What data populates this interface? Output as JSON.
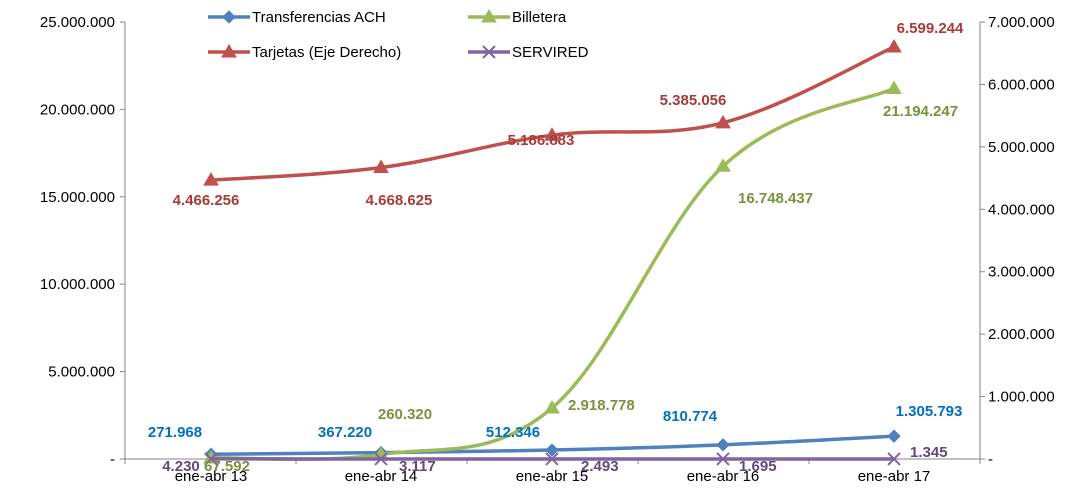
{
  "chart_data": {
    "type": "line",
    "categories": [
      "ene-abr 13",
      "ene-abr 14",
      "ene-abr 15",
      "ene-abr 16",
      "ene-abr 17"
    ],
    "y_left": {
      "ylim": [
        0,
        25000000
      ],
      "ticks": [
        0,
        5000000,
        10000000,
        15000000,
        20000000,
        25000000
      ],
      "tick_labels": [
        "-",
        "5.000.000",
        "10.000.000",
        "15.000.000",
        "20.000.000",
        "25.000.000"
      ]
    },
    "y_right": {
      "ylim": [
        0,
        7000000
      ],
      "ticks": [
        0,
        1000000,
        2000000,
        3000000,
        4000000,
        5000000,
        6000000,
        7000000
      ],
      "tick_labels": [
        "-",
        "1.000.000",
        "2.000.000",
        "3.000.000",
        "4.000.000",
        "5.000.000",
        "6.000.000",
        "7.000.000"
      ]
    },
    "series": [
      {
        "name": "Transferencias ACH",
        "axis": "left",
        "color": "#4f81bd",
        "label_color": "#0070c0",
        "marker": "diamond",
        "values": [
          271968,
          367220,
          512346,
          810774,
          1305793
        ],
        "labels": [
          "271.968",
          "367.220",
          "512.346",
          "810.774",
          "1.305.793"
        ]
      },
      {
        "name": "Billetera",
        "axis": "left",
        "color": "#9bbb59",
        "label_color": "#77933c",
        "marker": "triangle",
        "values": [
          67592,
          260320,
          2918778,
          16748437,
          21194247
        ],
        "labels": [
          "67.592",
          "260.320",
          "2.918.778",
          "16.748.437",
          "21.194.247"
        ]
      },
      {
        "name": "Tarjetas (Eje Derecho)",
        "axis": "right",
        "color": "#c0504d",
        "label_color": "#a93b37",
        "marker": "triangle",
        "values": [
          4466256,
          4668625,
          5186883,
          5385056,
          6599244
        ],
        "labels": [
          "4.466.256",
          "4.668.625",
          "5.186.883",
          "5.385.056",
          "6.599.244"
        ]
      },
      {
        "name": "SERVIRED",
        "axis": "left",
        "color": "#8064a2",
        "label_color": "#604a7b",
        "marker": "x",
        "values": [
          4230,
          3117,
          2493,
          1695,
          1345
        ],
        "labels": [
          "4.230",
          "3.117",
          "2.493",
          "1.695",
          "1.345"
        ]
      }
    ],
    "legend": "top",
    "grid": false
  }
}
